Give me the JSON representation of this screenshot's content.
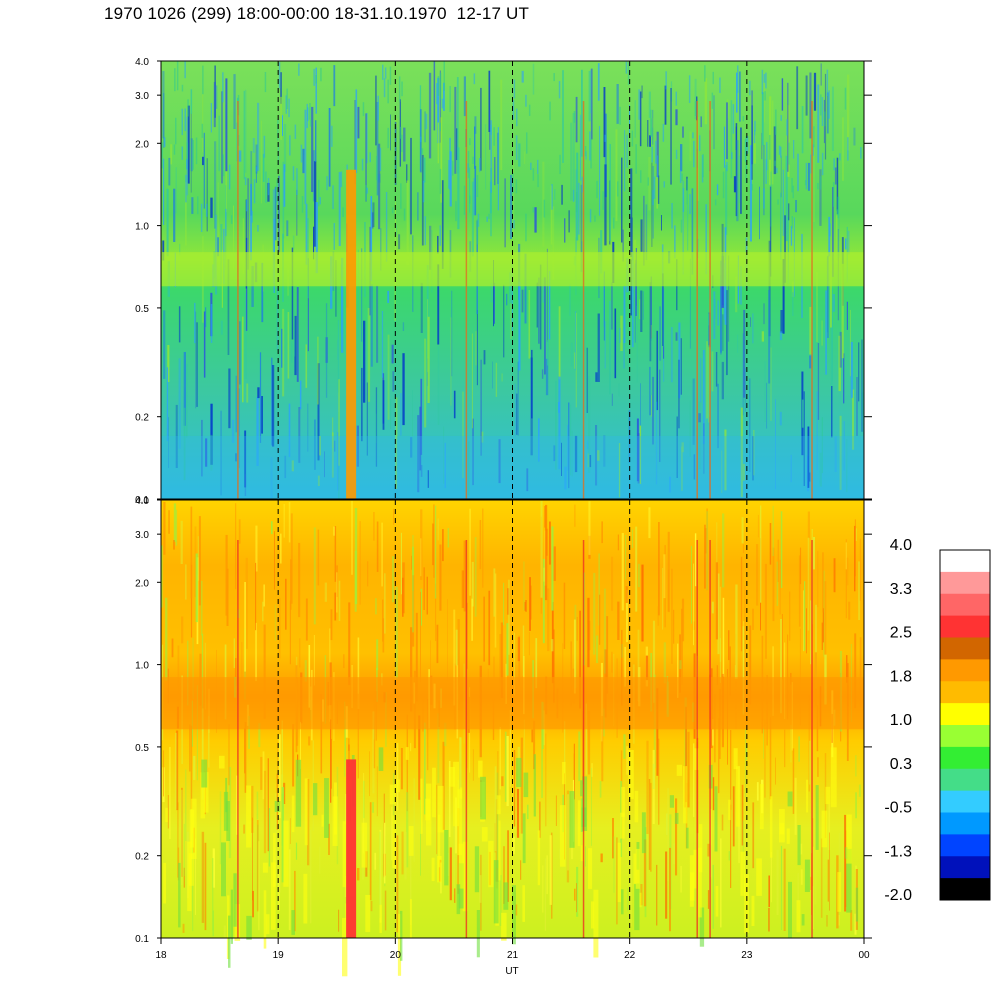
{
  "title": "1970 1026 (299) 18:00-00:00 18-31.10.1970  12-17 UT",
  "chart_data": [
    {
      "type": "heatmap",
      "panel": "top",
      "x_ticks": [
        "18",
        "19",
        "20",
        "21",
        "22",
        "23",
        "00"
      ],
      "x_values": [
        18,
        19,
        20,
        21,
        22,
        23,
        24
      ],
      "y_scale": "log",
      "y_ticks": [
        "0.1",
        "0.2",
        "0.5",
        "1.0",
        "2.0",
        "3.0",
        "4.0"
      ],
      "y_values": [
        0.1,
        0.2,
        0.5,
        1.0,
        2.0,
        3.0,
        4.0
      ],
      "ylim": [
        0.1,
        4.0
      ],
      "xlim": [
        18,
        24
      ],
      "grid": "dashed vertical lines at each hour"
    },
    {
      "type": "heatmap",
      "panel": "bottom",
      "x_ticks": [
        "18",
        "19",
        "20",
        "21",
        "22",
        "23",
        "00"
      ],
      "x_values": [
        18,
        19,
        20,
        21,
        22,
        23,
        24
      ],
      "y_scale": "log",
      "y_ticks": [
        "0.1",
        "0.2",
        "0.5",
        "1.0",
        "2.0",
        "3.0",
        "4.0"
      ],
      "y_values": [
        0.1,
        0.2,
        0.5,
        1.0,
        2.0,
        3.0,
        4.0
      ],
      "ylim": [
        0.1,
        4.0
      ],
      "xlim": [
        18,
        24
      ],
      "xlabel": "UT",
      "grid": "dashed vertical lines at each hour"
    }
  ],
  "colorbar": {
    "labels": [
      "4.0",
      "3.3",
      "2.5",
      "1.8",
      "1.0",
      "0.3",
      "-0.5",
      "-1.3",
      "-2.0"
    ],
    "colors": [
      "#ffffff",
      "#ff9999",
      "#ff6666",
      "#ff3333",
      "#d26600",
      "#ff9900",
      "#ffbb00",
      "#ffff00",
      "#99ff33",
      "#33ee33",
      "#44dd88",
      "#33ccff",
      "#0099ff",
      "#0044ff",
      "#0011bb",
      "#000000"
    ]
  }
}
